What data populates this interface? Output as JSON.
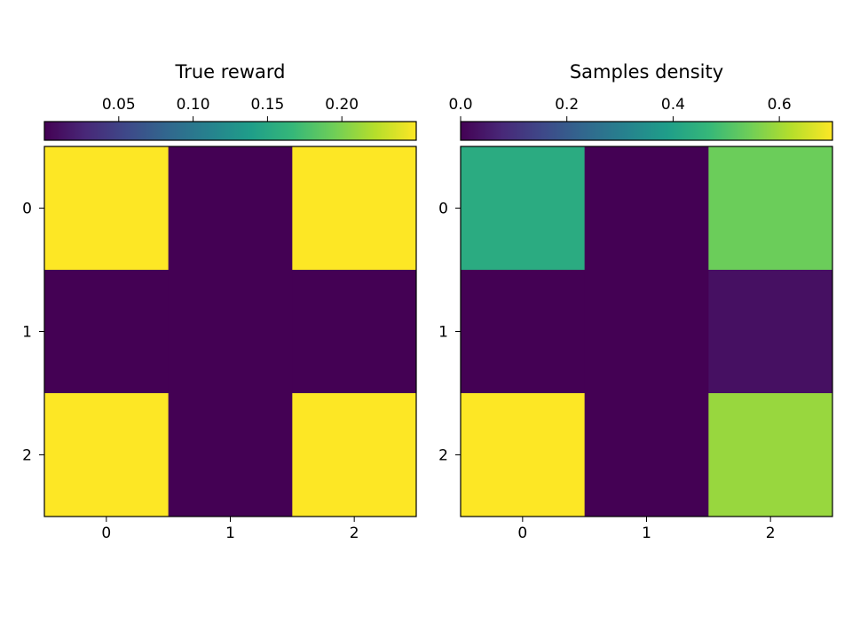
{
  "colormap": {
    "name": "viridis",
    "stops": [
      "#440154",
      "#482878",
      "#3e4989",
      "#31688e",
      "#26828e",
      "#1f9e89",
      "#35b779",
      "#6ece58",
      "#b5de2b",
      "#fde725"
    ]
  },
  "chart_data": [
    {
      "type": "heatmap",
      "title": "True reward",
      "rows": [
        "0",
        "1",
        "2"
      ],
      "cols": [
        "0",
        "1",
        "2"
      ],
      "values": [
        [
          0.25,
          0.0,
          0.25
        ],
        [
          0.0,
          0.0,
          0.0
        ],
        [
          0.25,
          0.0,
          0.25
        ]
      ],
      "vmin": 0.0,
      "vmax": 0.25,
      "colorbar": {
        "position": "top",
        "ticks": [
          {
            "value": 0.05,
            "label": "0.05"
          },
          {
            "value": 0.1,
            "label": "0.10"
          },
          {
            "value": 0.15,
            "label": "0.15"
          },
          {
            "value": 0.2,
            "label": "0.20"
          }
        ]
      }
    },
    {
      "type": "heatmap",
      "title": "Samples density",
      "rows": [
        "0",
        "1",
        "2"
      ],
      "cols": [
        "0",
        "1",
        "2"
      ],
      "values": [
        [
          0.43,
          0.0,
          0.54
        ],
        [
          0.0,
          0.0,
          0.03
        ],
        [
          0.7,
          0.0,
          0.59
        ]
      ],
      "vmin": 0.0,
      "vmax": 0.7,
      "colorbar": {
        "position": "top",
        "ticks": [
          {
            "value": 0.0,
            "label": "0.0"
          },
          {
            "value": 0.2,
            "label": "0.2"
          },
          {
            "value": 0.4,
            "label": "0.4"
          },
          {
            "value": 0.6,
            "label": "0.6"
          }
        ]
      }
    }
  ]
}
